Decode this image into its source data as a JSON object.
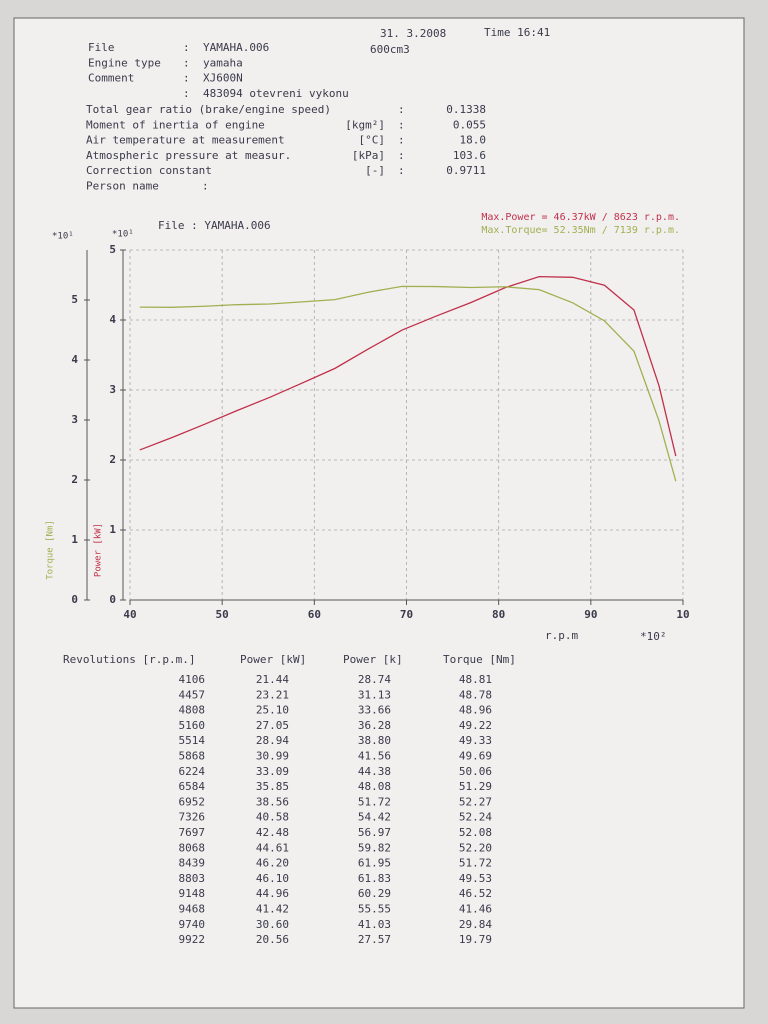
{
  "header": {
    "date": "31. 3.2008",
    "time": "Time 16:41",
    "displacement": "600cm3",
    "separator": ":",
    "file_info": [
      {
        "label": "File",
        "value": "YAMAHA.006"
      },
      {
        "label": "Engine type",
        "value": "yamaha"
      },
      {
        "label": "Comment",
        "value": "XJ600N"
      },
      {
        "value": "483094 otevreni vykonu"
      }
    ],
    "measurement": [
      {
        "label": "Total gear ratio (brake/engine speed)",
        "value": "0.1338"
      },
      {
        "label": "Moment of inertia of engine",
        "unit": "[kgm²]",
        "value": "0.055"
      },
      {
        "label": "Air temperature at measurement",
        "unit": "[°C]",
        "value": "18.0"
      },
      {
        "label": "Atmospheric pressure at measur.",
        "unit": "[kPa]",
        "value": "103.6"
      },
      {
        "label": "Correction constant",
        "unit": "[-]",
        "value": "0.9711"
      },
      {
        "label": "Person name"
      }
    ]
  },
  "chart_data": {
    "type": "line",
    "title": "File : YAMAHA.006",
    "annotations": [
      {
        "text": "Max.Power = 46.37kW /  8623 r.p.m.",
        "color": "#c0304a"
      },
      {
        "text": "Max.Torque= 52.35Nm /  7139 r.p.m.",
        "color": "#a0b050"
      }
    ],
    "x_label": "r.p.m",
    "x_multiplier": "*10²",
    "y_label": "Torque [Nm]",
    "y_multiplier": "*10¹",
    "y2_label": "Power [kW]",
    "y2_multiplier": "*10¹",
    "x": [
      4106,
      4457,
      4808,
      5160,
      5514,
      5868,
      6224,
      6584,
      6952,
      7326,
      7697,
      8068,
      8439,
      8803,
      9148,
      9468,
      9740,
      9922
    ],
    "series": [
      {
        "name": "Power [kW]",
        "color": "#c0304a",
        "axis": "y2",
        "values": [
          21.44,
          23.21,
          25.1,
          27.05,
          28.94,
          30.99,
          33.09,
          35.85,
          38.56,
          40.58,
          42.48,
          44.61,
          46.2,
          46.1,
          44.96,
          41.42,
          30.6,
          20.56
        ]
      },
      {
        "name": "Torque [Nm]",
        "color": "#a0b050",
        "values": [
          48.81,
          48.78,
          48.96,
          49.22,
          49.33,
          49.69,
          50.06,
          51.29,
          52.27,
          52.24,
          52.08,
          52.2,
          51.72,
          49.53,
          46.52,
          41.46,
          29.84,
          19.79
        ]
      }
    ],
    "xlim": [
      4000,
      10000
    ],
    "xticks": [
      {
        "value": 4000,
        "label": "40"
      },
      {
        "value": 5000,
        "label": "50"
      },
      {
        "value": 6000,
        "label": "60"
      },
      {
        "value": 7000,
        "label": "70"
      },
      {
        "value": 8000,
        "label": "80"
      },
      {
        "value": 9000,
        "label": "90"
      },
      {
        "value": 10000,
        "label": "10"
      }
    ],
    "ylim": [
      0,
      58.33
    ],
    "yticks": [
      {
        "value": 0,
        "label": "0"
      },
      {
        "value": 10,
        "label": "1"
      },
      {
        "value": 20,
        "label": "2"
      },
      {
        "value": 30,
        "label": "3"
      },
      {
        "value": 40,
        "label": "4"
      },
      {
        "value": 50,
        "label": "5"
      }
    ],
    "y2lim": [
      0,
      50
    ],
    "y2ticks": [
      {
        "value": 0,
        "label": "0"
      },
      {
        "value": 10,
        "label": "1"
      },
      {
        "value": 20,
        "label": "2"
      },
      {
        "value": 30,
        "label": "3"
      },
      {
        "value": 40,
        "label": "4"
      },
      {
        "value": 50,
        "label": "5"
      }
    ],
    "grid": true
  },
  "table": {
    "headers": [
      "Revolutions [r.p.m.]",
      "Power [kW]",
      "Power [k]",
      "Torque [Nm]"
    ],
    "rows": [
      [
        "4106",
        "21.44",
        "28.74",
        "48.81"
      ],
      [
        "4457",
        "23.21",
        "31.13",
        "48.78"
      ],
      [
        "4808",
        "25.10",
        "33.66",
        "48.96"
      ],
      [
        "5160",
        "27.05",
        "36.28",
        "49.22"
      ],
      [
        "5514",
        "28.94",
        "38.80",
        "49.33"
      ],
      [
        "5868",
        "30.99",
        "41.56",
        "49.69"
      ],
      [
        "6224",
        "33.09",
        "44.38",
        "50.06"
      ],
      [
        "6584",
        "35.85",
        "48.08",
        "51.29"
      ],
      [
        "6952",
        "38.56",
        "51.72",
        "52.27"
      ],
      [
        "7326",
        "40.58",
        "54.42",
        "52.24"
      ],
      [
        "7697",
        "42.48",
        "56.97",
        "52.08"
      ],
      [
        "8068",
        "44.61",
        "59.82",
        "52.20"
      ],
      [
        "8439",
        "46.20",
        "61.95",
        "51.72"
      ],
      [
        "8803",
        "46.10",
        "61.83",
        "49.53"
      ],
      [
        "9148",
        "44.96",
        "60.29",
        "46.52"
      ],
      [
        "9468",
        "41.42",
        "55.55",
        "41.46"
      ],
      [
        "9740",
        "30.60",
        "41.03",
        "29.84"
      ],
      [
        "9922",
        "20.56",
        "27.57",
        "19.79"
      ]
    ]
  }
}
